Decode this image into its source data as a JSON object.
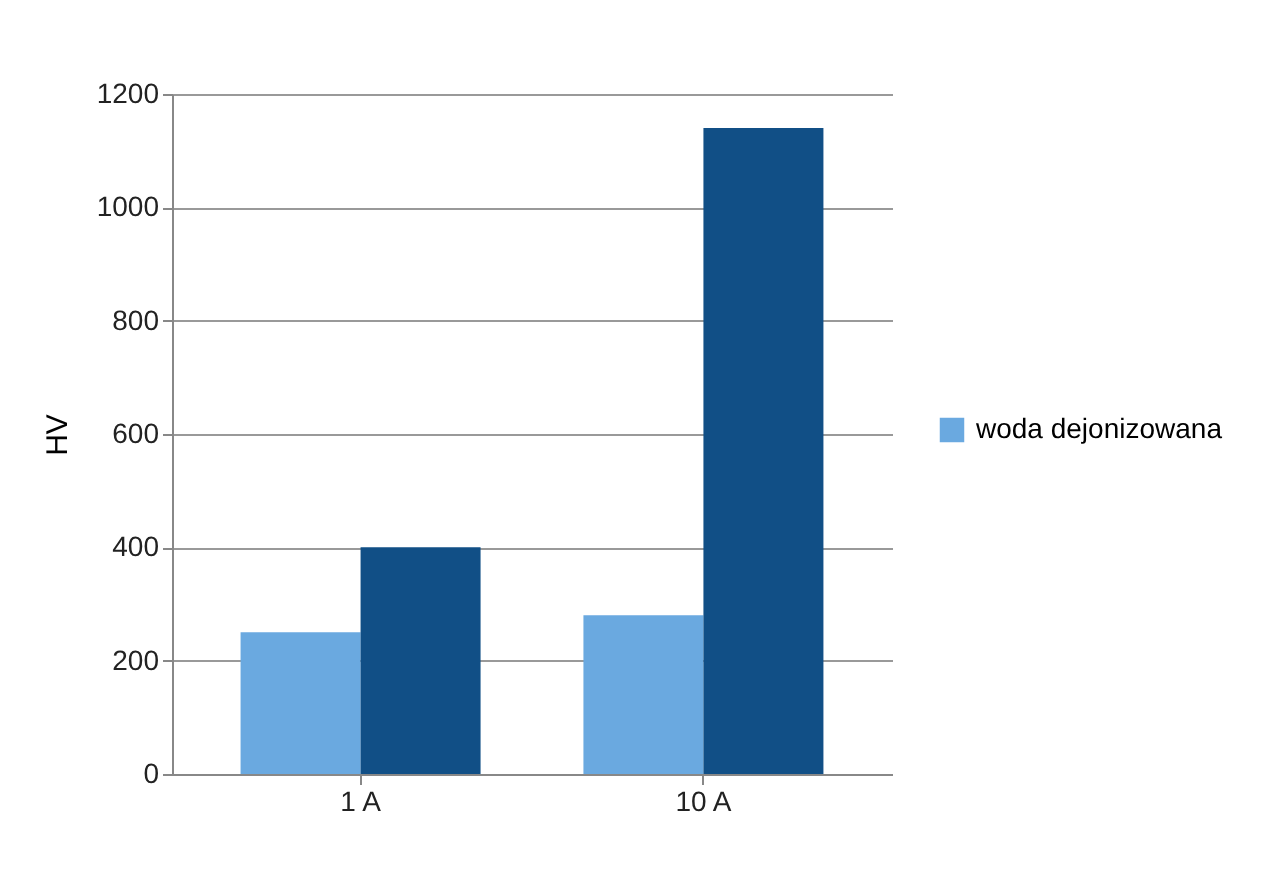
{
  "chart_data": {
    "type": "bar",
    "ylabel": "HV",
    "categories": [
      "1 A",
      "10 A"
    ],
    "series": [
      {
        "name": "woda dejonizowana",
        "color": "#6aa9e0",
        "values": [
          250,
          280
        ]
      },
      {
        "color": "#114f86",
        "values": [
          400,
          1140
        ]
      }
    ],
    "ylim": [
      0,
      1200
    ],
    "yticks": [
      0,
      200,
      400,
      600,
      800,
      1000,
      1200
    ],
    "grid": "y",
    "legend": "right"
  }
}
